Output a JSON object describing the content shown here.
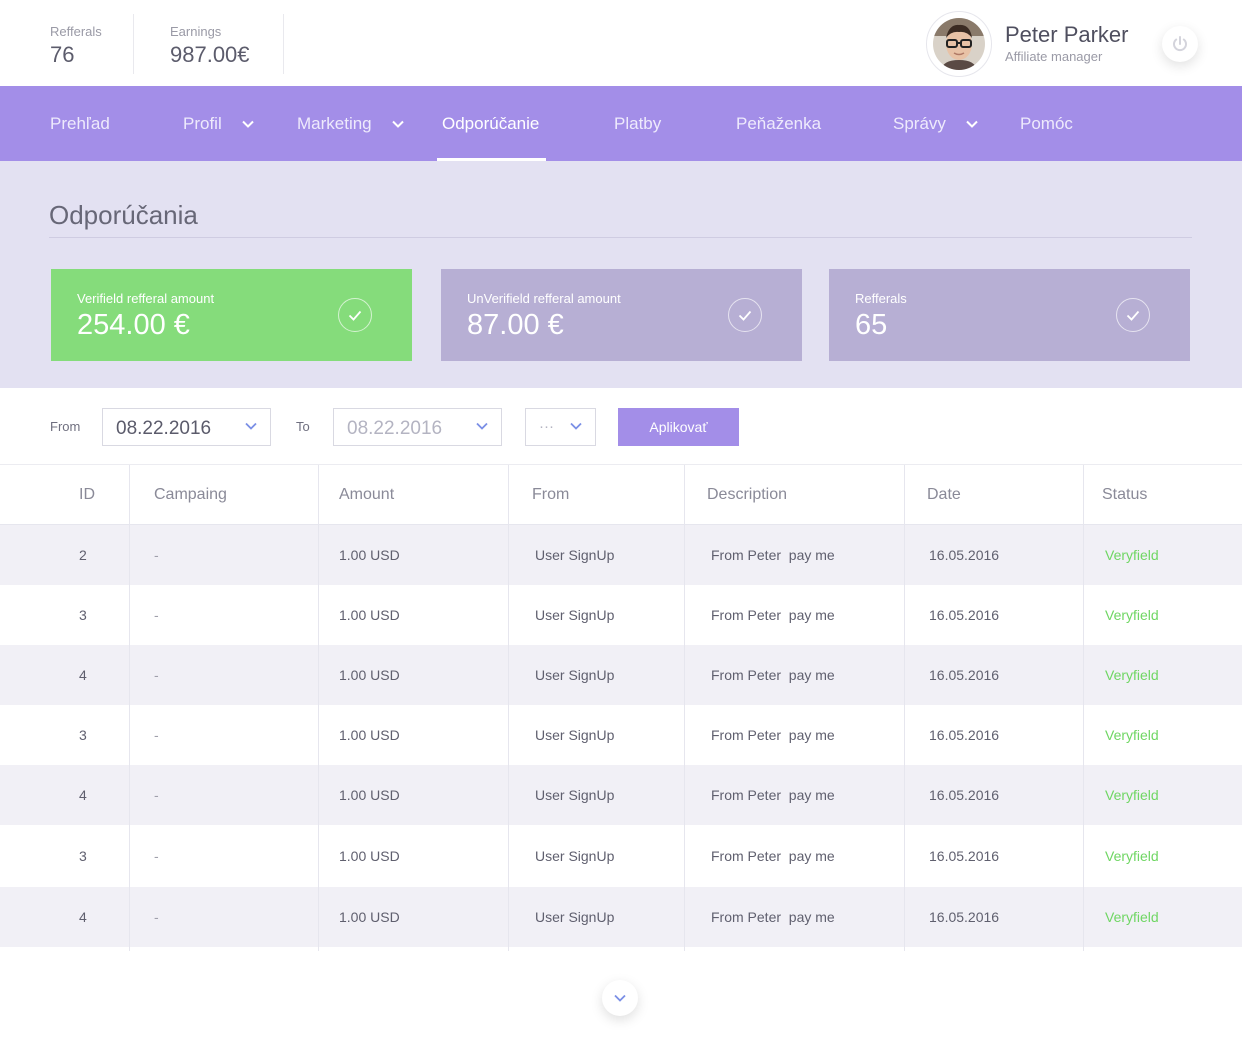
{
  "header": {
    "referrals": {
      "label": "Refferals",
      "value": "76"
    },
    "earnings": {
      "label": "Earnings",
      "value": "987.00€"
    },
    "user": {
      "name": "Peter Parker",
      "role": "Affiliate manager"
    },
    "icons": {
      "power": "power-icon"
    }
  },
  "nav": {
    "items": [
      {
        "label": "Prehľad",
        "has_dropdown": false
      },
      {
        "label": "Profil",
        "has_dropdown": true
      },
      {
        "label": "Marketing",
        "has_dropdown": true
      },
      {
        "label": "Odporúčanie",
        "has_dropdown": false,
        "active": true
      },
      {
        "label": "Platby",
        "has_dropdown": false
      },
      {
        "label": "Peňaženka",
        "has_dropdown": false
      },
      {
        "label": "Správy",
        "has_dropdown": true
      },
      {
        "label": "Pomóc",
        "has_dropdown": false
      }
    ]
  },
  "page": {
    "title": "Odporúčania"
  },
  "cards": [
    {
      "label": "Verifield refferal amount",
      "value": "254.00 €",
      "color": "#85dc7b",
      "icon": "check-icon"
    },
    {
      "label": "UnVerifield refferal amount",
      "value": "87.00 €",
      "color": "#b7afd4",
      "icon": "check-icon"
    },
    {
      "label": "Refferals",
      "value": "65",
      "color": "#b7afd4",
      "icon": "check-icon"
    }
  ],
  "filters": {
    "from_label": "From",
    "from_value": "08.22.2016",
    "to_label": "To",
    "to_value": "08.22.2016",
    "extra_value": "···",
    "apply_label": "Aplikovať"
  },
  "table": {
    "columns": [
      "ID",
      "Campaing",
      "Amount",
      "From",
      "Description",
      "Date",
      "Status"
    ],
    "rows": [
      {
        "id": "2",
        "campaign": "-",
        "amount": "1.00 USD",
        "from": "User SignUp",
        "description": "From Peter  pay me",
        "date": "16.05.2016",
        "status": "Veryfield"
      },
      {
        "id": "3",
        "campaign": "-",
        "amount": "1.00 USD",
        "from": "User SignUp",
        "description": "From Peter  pay me",
        "date": "16.05.2016",
        "status": "Veryfield"
      },
      {
        "id": "4",
        "campaign": "-",
        "amount": "1.00 USD",
        "from": "User SignUp",
        "description": "From Peter  pay me",
        "date": "16.05.2016",
        "status": "Veryfield"
      },
      {
        "id": "3",
        "campaign": "-",
        "amount": "1.00 USD",
        "from": "User SignUp",
        "description": "From Peter  pay me",
        "date": "16.05.2016",
        "status": "Veryfield"
      },
      {
        "id": "4",
        "campaign": "-",
        "amount": "1.00 USD",
        "from": "User SignUp",
        "description": "From Peter  pay me",
        "date": "16.05.2016",
        "status": "Veryfield"
      },
      {
        "id": "3",
        "campaign": "-",
        "amount": "1.00 USD",
        "from": "User SignUp",
        "description": "From Peter  pay me",
        "date": "16.05.2016",
        "status": "Veryfield"
      },
      {
        "id": "4",
        "campaign": "-",
        "amount": "1.00 USD",
        "from": "User SignUp",
        "description": "From Peter  pay me",
        "date": "16.05.2016",
        "status": "Veryfield"
      }
    ]
  },
  "colors": {
    "accent": "#a38ee8",
    "verified": "#6fd663",
    "green_card": "#85dc7b",
    "purple_card": "#b7afd4",
    "summary_bg": "#e3e1f2"
  }
}
